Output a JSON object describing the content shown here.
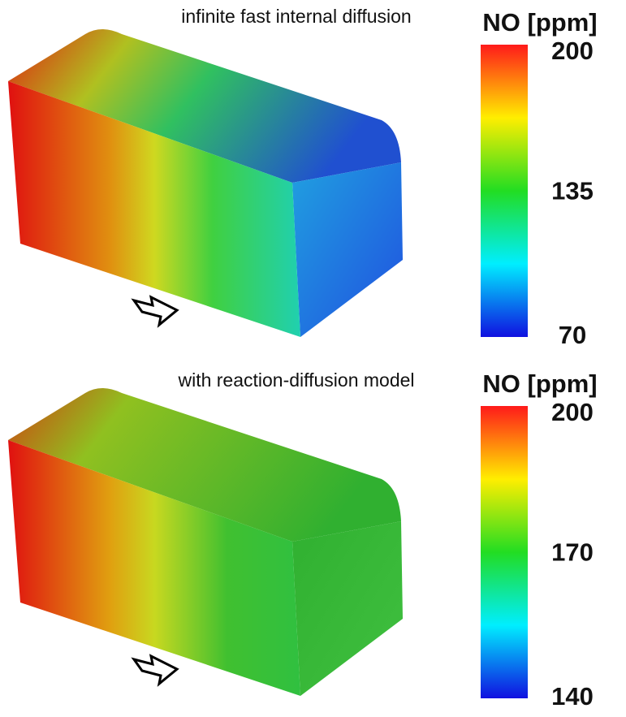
{
  "panels": [
    {
      "title": "infinite fast internal diffusion",
      "colorbar": {
        "label": "NO [ppm]",
        "ticks": [
          200,
          135,
          70
        ]
      }
    },
    {
      "title": "with reaction-diffusion model",
      "colorbar": {
        "label": "NO [ppm]",
        "ticks": [
          200,
          170,
          140
        ]
      }
    }
  ]
}
